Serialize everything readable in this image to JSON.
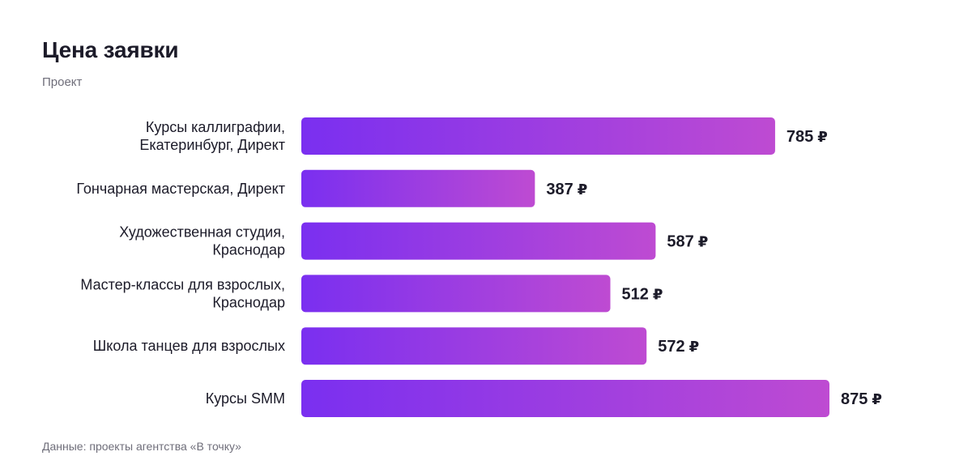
{
  "title": "Цена заявки",
  "subtitle": "Проект",
  "source": "Данные: проекты агентства «В точку»",
  "chart_data": {
    "type": "bar",
    "orientation": "horizontal",
    "title": "Цена заявки",
    "subtitle": "Проект",
    "unit": "₽",
    "categories": [
      [
        "Курсы каллиграфии,",
        "Екатеринбург, Директ"
      ],
      [
        "Гончарная мастерская, Директ"
      ],
      [
        "Художественная студия,",
        "Краснодар"
      ],
      [
        "Мастер-классы для взрослых,",
        "Краснодар"
      ],
      [
        "Школа танцев для взрослых"
      ],
      [
        "Курсы SMM"
      ]
    ],
    "values": [
      785,
      387,
      587,
      512,
      572,
      875
    ],
    "xlim": [
      0,
      875
    ],
    "grid": false,
    "colors": {
      "bar_gradient_start": "#7a2ff0",
      "bar_gradient_end": "#be4bd2"
    }
  }
}
